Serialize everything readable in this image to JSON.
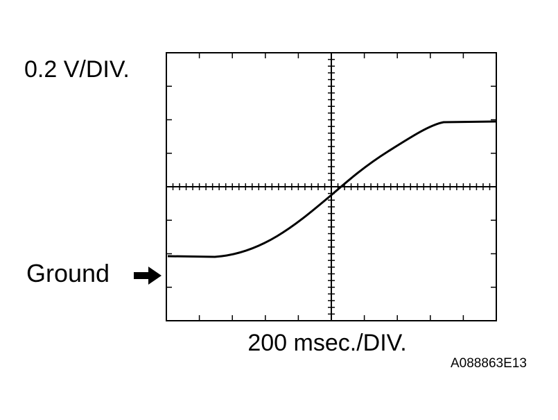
{
  "volts_per_div": "0.2 V/DIV.",
  "ground_label": "Ground",
  "time_per_div": "200 msec./DIV.",
  "figure_id": "A088863E13"
}
